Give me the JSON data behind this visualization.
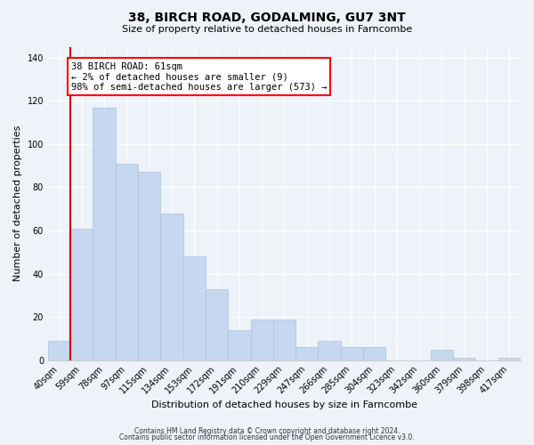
{
  "title": "38, BIRCH ROAD, GODALMING, GU7 3NT",
  "subtitle": "Size of property relative to detached houses in Farncombe",
  "xlabel": "Distribution of detached houses by size in Farncombe",
  "ylabel": "Number of detached properties",
  "bar_labels": [
    "40sqm",
    "59sqm",
    "78sqm",
    "97sqm",
    "115sqm",
    "134sqm",
    "153sqm",
    "172sqm",
    "191sqm",
    "210sqm",
    "229sqm",
    "247sqm",
    "266sqm",
    "285sqm",
    "304sqm",
    "323sqm",
    "342sqm",
    "360sqm",
    "379sqm",
    "398sqm",
    "417sqm"
  ],
  "bar_heights": [
    9,
    61,
    117,
    91,
    87,
    68,
    48,
    33,
    14,
    19,
    19,
    6,
    9,
    6,
    6,
    0,
    0,
    5,
    1,
    0,
    1
  ],
  "bar_color": "#c5d8f0",
  "bar_edge_color": "#a8c4e0",
  "highlight_color": "#cc0000",
  "ylim": [
    0,
    145
  ],
  "yticks": [
    0,
    20,
    40,
    60,
    80,
    100,
    120,
    140
  ],
  "annotation_title": "38 BIRCH ROAD: 61sqm",
  "annotation_line1": "← 2% of detached houses are smaller (9)",
  "annotation_line2": "98% of semi-detached houses are larger (573) →",
  "footer1": "Contains HM Land Registry data © Crown copyright and database right 2024.",
  "footer2": "Contains public sector information licensed under the Open Government Licence v3.0.",
  "background_color": "#eef2f9",
  "grid_color": "#ffffff",
  "title_fontsize": 10,
  "subtitle_fontsize": 8,
  "tick_fontsize": 7,
  "ylabel_fontsize": 8,
  "xlabel_fontsize": 8,
  "annotation_fontsize": 7.5,
  "footer_fontsize": 5.5
}
